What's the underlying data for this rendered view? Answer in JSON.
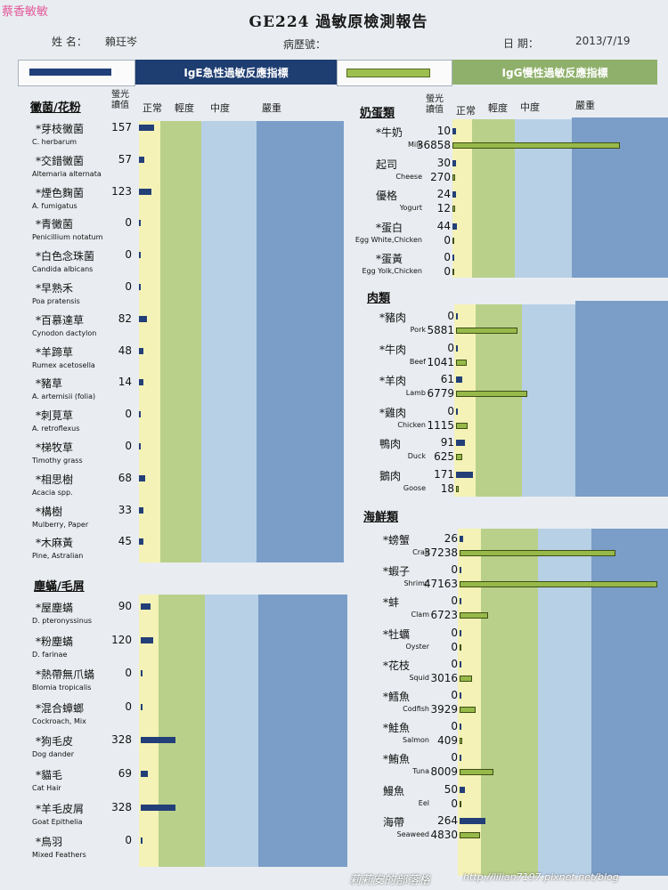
{
  "watermark_top": "蔡香敏敏",
  "title": "GE224 過敏原檢測報告",
  "patient": {
    "name_label": "姓 名：",
    "name_value": "賴玨岑",
    "record_label": "病歷號：",
    "date_label": "日 期：",
    "date_value": "2013/7/19"
  },
  "legend": {
    "ige_label": "IgE急性過敏反應指標",
    "igg_label": "IgG慢性過敏反應指標"
  },
  "headers": {
    "reading": "螢光\n讀值",
    "normal": "正常",
    "mild": "輕度",
    "moderate": "中度",
    "severe": "嚴重"
  },
  "sections": {
    "mold_pollen": "黴菌/花粉",
    "mites_dander": "塵蟎/毛屑",
    "milk_egg": "奶蛋類",
    "meat": "肉類",
    "seafood": "海鮮類"
  },
  "mold_pollen": [
    {
      "zh": "*芽枝黴菌",
      "en": "C. herbarum",
      "val": "157",
      "ige": 157
    },
    {
      "zh": "*交錯黴菌",
      "en": "Altemaria alternata",
      "val": "57",
      "ige": 57
    },
    {
      "zh": "*煙色麴菌",
      "en": "A. fumigatus",
      "val": "123",
      "ige": 123
    },
    {
      "zh": "*青黴菌",
      "en": "Penicillium notatum",
      "val": "0",
      "ige": 0
    },
    {
      "zh": "*白色念珠菌",
      "en": "Candida albicans",
      "val": "0",
      "ige": 0
    },
    {
      "zh": "*早熟禾",
      "en": "Poa pratensis",
      "val": "0",
      "ige": 0
    },
    {
      "zh": "*百慕達草",
      "en": "Cynodon dactylon",
      "val": "82",
      "ige": 82
    },
    {
      "zh": "*羊蹄草",
      "en": "Rumex acetosella",
      "val": "48",
      "ige": 48
    },
    {
      "zh": "*豬草",
      "en": "A. artemisii (folia)",
      "val": "14",
      "ige": 14
    },
    {
      "zh": "*刺莧草",
      "en": "A. retroflexus",
      "val": "0",
      "ige": 0
    },
    {
      "zh": "*梯牧草",
      "en": "Timothy grass",
      "val": "0",
      "ige": 0
    },
    {
      "zh": "*相思樹",
      "en": "Acacia spp.",
      "val": "68",
      "ige": 68
    },
    {
      "zh": "*構樹",
      "en": "Mulberry, Paper",
      "val": "33",
      "ige": 33
    },
    {
      "zh": "*木麻黃",
      "en": "Pine, Astralian",
      "val": "45",
      "ige": 45
    }
  ],
  "mites_dander": [
    {
      "zh": "*屋塵蟎",
      "en": "D. pteronyssinus",
      "val": "90",
      "ige": 90
    },
    {
      "zh": "*粉塵蟎",
      "en": "D. farinae",
      "val": "120",
      "ige": 120
    },
    {
      "zh": "*熱帶無爪蟎",
      "en": "Blomia tropicalis",
      "val": "0",
      "ige": 0
    },
    {
      "zh": "*混合蟑螂",
      "en": "Cockroach, Mix",
      "val": "0",
      "ige": 0
    },
    {
      "zh": "*狗毛皮",
      "en": "Dog dander",
      "val": "328",
      "ige": 328
    },
    {
      "zh": "*貓毛",
      "en": "Cat Hair",
      "val": "69",
      "ige": 69
    },
    {
      "zh": "*羊毛皮屑",
      "en": "Goat Epithelia",
      "val": "328",
      "ige": 328
    },
    {
      "zh": "*鳥羽",
      "en": "Mixed Feathers",
      "val": "0",
      "ige": 0
    }
  ],
  "milk_egg": [
    {
      "zh": "*牛奶",
      "en": "Milk",
      "ige_val": "10",
      "igg_val": "36858",
      "ige": 10,
      "igg": 36858
    },
    {
      "zh": "起司",
      "en": "Cheese",
      "ige_val": "30",
      "igg_val": "270",
      "ige": 30,
      "igg": 270
    },
    {
      "zh": "優格",
      "en": "Yogurt",
      "ige_val": "24",
      "igg_val": "12",
      "ige": 24,
      "igg": 12
    },
    {
      "zh": "*蛋白",
      "en": "Egg White,Chicken",
      "ige_val": "44",
      "igg_val": "0",
      "ige": 44,
      "igg": 0
    },
    {
      "zh": "*蛋黃",
      "en": "Egg Yolk,Chicken",
      "ige_val": "0",
      "igg_val": "0",
      "ige": 0,
      "igg": 0
    }
  ],
  "meat": [
    {
      "zh": "*豬肉",
      "en": "Pork",
      "ige_val": "0",
      "igg_val": "5881",
      "ige": 0,
      "igg": 5881
    },
    {
      "zh": "*牛肉",
      "en": "Beef",
      "ige_val": "0",
      "igg_val": "1041",
      "ige": 0,
      "igg": 1041
    },
    {
      "zh": "*羊肉",
      "en": "Lamb",
      "ige_val": "61",
      "igg_val": "6779",
      "ige": 61,
      "igg": 6779
    },
    {
      "zh": "*雞肉",
      "en": "Chicken",
      "ige_val": "0",
      "igg_val": "1115",
      "ige": 0,
      "igg": 1115
    },
    {
      "zh": "鴨肉",
      "en": "Duck",
      "ige_val": "91",
      "igg_val": "625",
      "ige": 91,
      "igg": 625
    },
    {
      "zh": "鵝肉",
      "en": "Goose",
      "ige_val": "171",
      "igg_val": "18",
      "ige": 171,
      "igg": 18
    }
  ],
  "seafood": [
    {
      "zh": "*螃蟹",
      "en": "Crab",
      "ige_val": "26",
      "igg_val": "37238",
      "ige": 26,
      "igg": 37238
    },
    {
      "zh": "*蝦子",
      "en": "Shrimp",
      "ige_val": "0",
      "igg_val": "47163",
      "ige": 0,
      "igg": 47163
    },
    {
      "zh": "*蚌",
      "en": "Clam",
      "ige_val": "0",
      "igg_val": "6723",
      "ige": 0,
      "igg": 6723
    },
    {
      "zh": "*牡蠣",
      "en": "Oyster",
      "ige_val": "0",
      "igg_val": "0",
      "ige": 0,
      "igg": 0
    },
    {
      "zh": "*花枝",
      "en": "Squid",
      "ige_val": "0",
      "igg_val": "3016",
      "ige": 0,
      "igg": 3016
    },
    {
      "zh": "*鱈魚",
      "en": "Codfish",
      "ige_val": "0",
      "igg_val": "3929",
      "ige": 0,
      "igg": 3929
    },
    {
      "zh": "*鮭魚",
      "en": "Salmon",
      "ige_val": "0",
      "igg_val": "409",
      "ige": 0,
      "igg": 409
    },
    {
      "zh": "*鮪魚",
      "en": "Tuna",
      "ige_val": "0",
      "igg_val": "8009",
      "ige": 0,
      "igg": 8009
    },
    {
      "zh": "鰻魚",
      "en": "Eel",
      "ige_val": "50",
      "igg_val": "0",
      "ige": 50,
      "igg": 0
    },
    {
      "zh": "海帶",
      "en": "Seaweed",
      "ige_val": "264",
      "igg_val": "4830",
      "ige": 264,
      "igg": 4830
    }
  ],
  "footer": {
    "blog_name": "莉莉安的部落格",
    "url": "http://lilian7197.pixnet.net/blog"
  },
  "colors": {
    "ige_bar": "#233f78",
    "igg_bar": "#97b949",
    "normal": "#f4f2b6",
    "mild": "#b9d08a",
    "moderate": "#b7d0e6",
    "severe": "#7a9ec8"
  }
}
